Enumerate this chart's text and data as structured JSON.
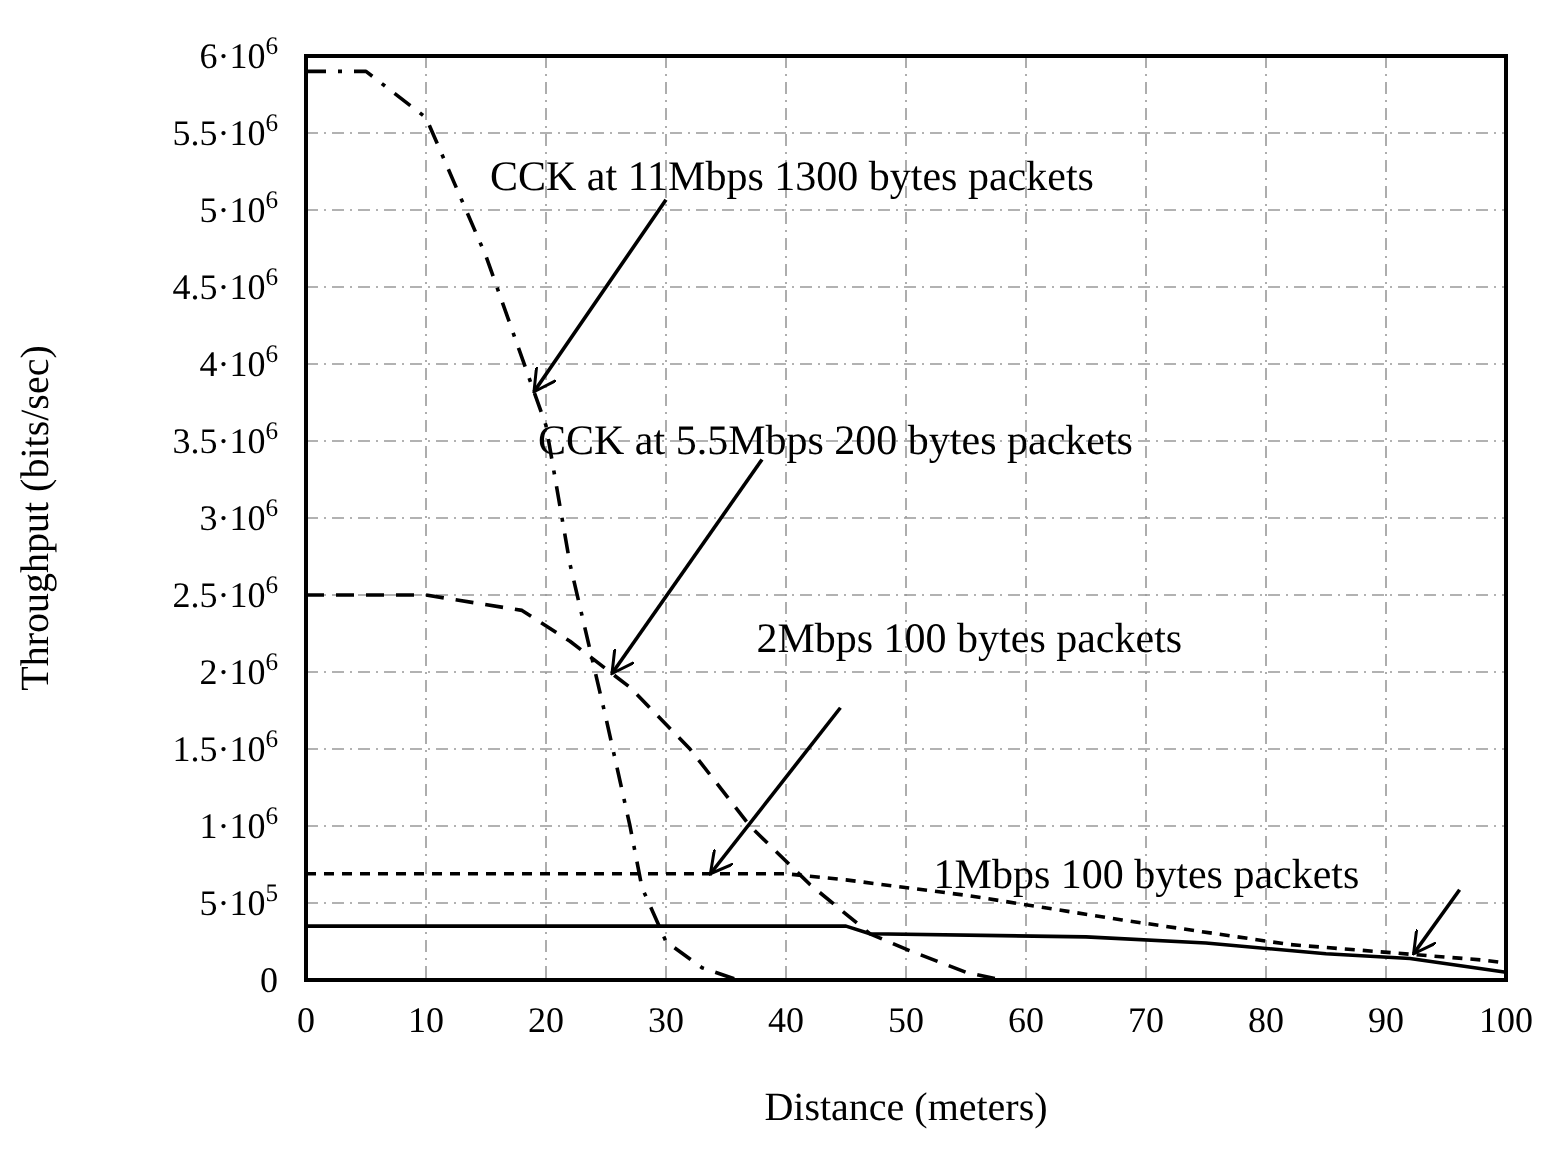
{
  "chart_data": {
    "type": "line",
    "xlabel": "Distance (meters)",
    "ylabel": "Throughput (bits/sec)",
    "xlim": [
      0,
      100
    ],
    "xticks": [
      0,
      10,
      20,
      30,
      40,
      50,
      60,
      70,
      80,
      90,
      100
    ],
    "ylim": [
      0,
      6000000
    ],
    "yticks": [
      0,
      {
        "value": 500000,
        "label": "5·10$^{5}$"
      },
      {
        "value": 1000000,
        "label": "1·10$^{6}$"
      },
      {
        "value": 1500000,
        "label": "1.5·10$^{6}$"
      },
      {
        "value": 2000000,
        "label": "2·10$^{6}$"
      },
      {
        "value": 2500000,
        "label": "2.5·10$^{6}$"
      },
      {
        "value": 3000000,
        "label": "3·10$^{6}$"
      },
      {
        "value": 3500000,
        "label": "3.5·10$^{6}$"
      },
      {
        "value": 4000000,
        "label": "4·10$^{6}$"
      },
      {
        "value": 4500000,
        "label": "4.5·10$^{6}$"
      },
      {
        "value": 5000000,
        "label": "5·10$^{6}$"
      },
      {
        "value": 5500000,
        "label": "5.5·10$^{6}$"
      },
      {
        "value": 6000000,
        "label": "6·10$^{6}$"
      }
    ],
    "grid": true,
    "marker": "none",
    "series": [
      {
        "color": "#000000",
        "line_style": "dashdot",
        "x": [
          0,
          5,
          10,
          15,
          20,
          22,
          25,
          27,
          28,
          30,
          33,
          36,
          100
        ],
        "values": [
          5900000,
          5900000,
          5600000,
          4700000,
          3600000,
          2700000,
          1700000,
          1000000,
          600000,
          250000,
          80000,
          0,
          0
        ]
      },
      {
        "color": "#000000",
        "line_style": "dashed",
        "x": [
          0,
          10,
          18,
          22,
          27,
          32,
          37,
          42,
          47,
          50,
          55,
          58,
          100
        ],
        "values": [
          2500000,
          2500000,
          2400000,
          2200000,
          1900000,
          1500000,
          1000000,
          620000,
          300000,
          200000,
          50000,
          0,
          0
        ]
      },
      {
        "color": "#000000",
        "line_style": "dotted",
        "x": [
          0,
          40,
          45,
          55,
          68,
          82,
          98,
          100
        ],
        "values": [
          690000,
          690000,
          650000,
          550000,
          390000,
          230000,
          130000,
          110000
        ]
      },
      {
        "color": "#000000",
        "line_style": "solid",
        "x": [
          0,
          45,
          47,
          65,
          75,
          85,
          92,
          100
        ],
        "values": [
          350000,
          350000,
          300000,
          280000,
          240000,
          170000,
          140000,
          50000
        ]
      }
    ],
    "annotations": [
      {
        "text": "CCK at 11Mbps 1300 bytes packets",
        "x": 19,
        "y": 3820000
      },
      {
        "text": "CCK at 5.5Mbps 200 bytes packets",
        "x": 25.5,
        "y": 1990000
      },
      {
        "text": "2Mbps 100 bytes packets",
        "x": 33.7,
        "y": 690000
      },
      {
        "text": "1Mbps 100 bytes packets",
        "x": 92.3,
        "y": 170000
      }
    ]
  }
}
